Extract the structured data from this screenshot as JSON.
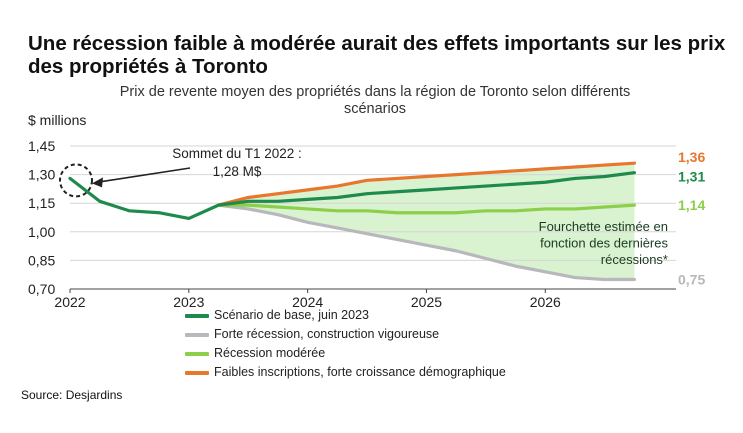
{
  "headline": "Une récession faible à modérée aurait des effets importants sur les prix des propriétés à Toronto",
  "source": "Source: Desjardins",
  "colors": {
    "base": "#1e8a4c",
    "severe": "#b8b8bc",
    "moderate": "#8ccf4a",
    "high_growth": "#e8772e",
    "band": "#d9f2cf"
  },
  "chart_data": {
    "type": "line",
    "title": "Prix de revente moyen des propriétés dans la région de Toronto selon différents scénarios",
    "ylabel": "$ millions",
    "xlabel": "",
    "ylim": [
      0.7,
      1.45
    ],
    "yticks": [
      "0,70",
      "0,85",
      "1,00",
      "1,15",
      "1,30",
      "1,45"
    ],
    "ytick_values": [
      0.7,
      0.85,
      1.0,
      1.15,
      1.3,
      1.45
    ],
    "xticks": [
      "2022",
      "2023",
      "2024",
      "2025",
      "2026"
    ],
    "xtick_values": [
      2022,
      2023,
      2024,
      2025,
      2026
    ],
    "xlim": [
      2022,
      2027.1
    ],
    "grid": true,
    "legend_position": "bottom",
    "series": [
      {
        "key": "base",
        "name": "Scénario de base, juin 2023",
        "end_label": "1,31",
        "x": [
          2022,
          2022.25,
          2022.5,
          2022.75,
          2023,
          2023.25,
          2023.5,
          2023.75,
          2024,
          2024.25,
          2024.5,
          2024.75,
          2025,
          2025.25,
          2025.5,
          2025.75,
          2026,
          2026.25,
          2026.5,
          2026.75
        ],
        "values": [
          1.28,
          1.16,
          1.11,
          1.1,
          1.07,
          1.14,
          1.16,
          1.16,
          1.17,
          1.18,
          1.2,
          1.21,
          1.22,
          1.23,
          1.24,
          1.25,
          1.26,
          1.28,
          1.29,
          1.31
        ]
      },
      {
        "key": "severe",
        "name": "Forte récession, construction vigoureuse",
        "end_label": "0,75",
        "x": [
          2023.25,
          2023.5,
          2023.75,
          2024,
          2024.25,
          2024.5,
          2024.75,
          2025,
          2025.25,
          2025.5,
          2025.75,
          2026,
          2026.25,
          2026.5,
          2026.75
        ],
        "values": [
          1.14,
          1.12,
          1.09,
          1.05,
          1.02,
          0.99,
          0.96,
          0.93,
          0.9,
          0.86,
          0.82,
          0.79,
          0.76,
          0.75,
          0.75
        ]
      },
      {
        "key": "moderate",
        "name": "Récession modérée",
        "end_label": "1,14",
        "x": [
          2023.25,
          2023.5,
          2023.75,
          2024,
          2024.25,
          2024.5,
          2024.75,
          2025,
          2025.25,
          2025.5,
          2025.75,
          2026,
          2026.25,
          2026.5,
          2026.75
        ],
        "values": [
          1.14,
          1.14,
          1.13,
          1.12,
          1.11,
          1.11,
          1.1,
          1.1,
          1.1,
          1.11,
          1.11,
          1.12,
          1.12,
          1.13,
          1.14
        ]
      },
      {
        "key": "high_growth",
        "name": "Faibles inscriptions, forte croissance démographique",
        "end_label": "1,36",
        "x": [
          2023.25,
          2023.5,
          2023.75,
          2024,
          2024.25,
          2024.5,
          2024.75,
          2025,
          2025.25,
          2025.5,
          2025.75,
          2026,
          2026.25,
          2026.5,
          2026.75
        ],
        "values": [
          1.14,
          1.18,
          1.2,
          1.22,
          1.24,
          1.27,
          1.28,
          1.29,
          1.3,
          1.31,
          1.32,
          1.33,
          1.34,
          1.35,
          1.36
        ]
      }
    ],
    "annotations": {
      "peak_label_line1": "Sommet du T1 2022 :",
      "peak_label_line2": "1,28 M$",
      "peak_x": 2022,
      "peak_y": 1.28,
      "band_label_line1": "Fourchette estimée en",
      "band_label_line2": "fonction des dernières",
      "band_label_line3": "récessions*"
    }
  }
}
